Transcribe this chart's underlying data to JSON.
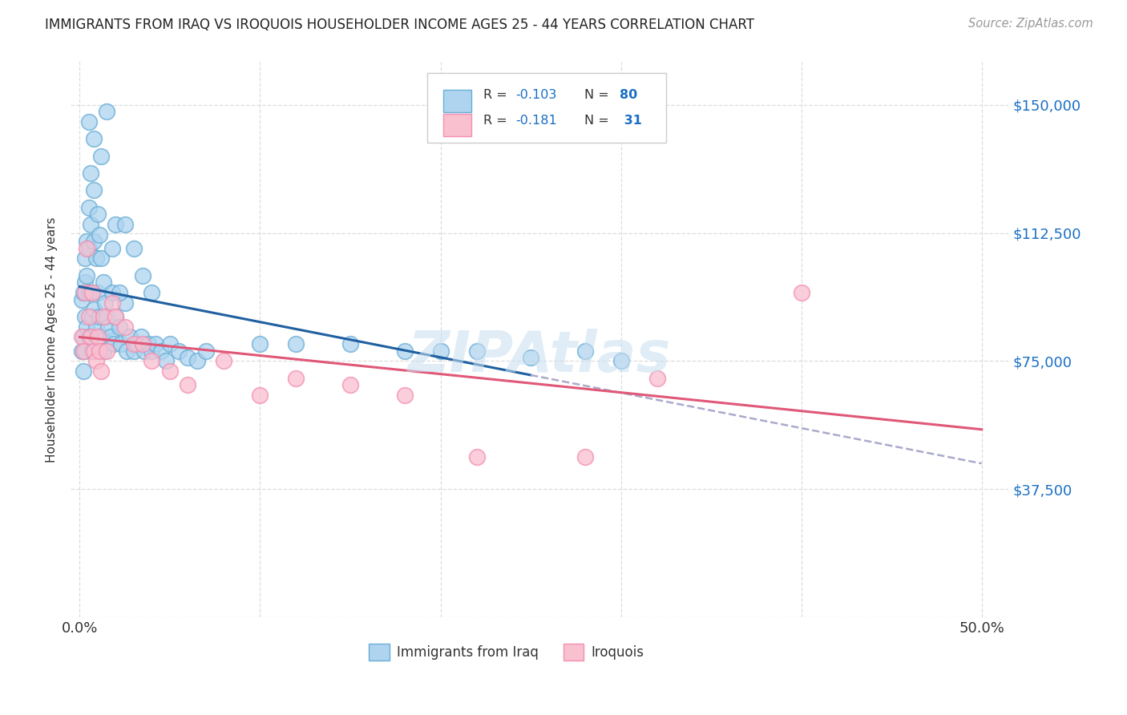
{
  "title": "IMMIGRANTS FROM IRAQ VS IROQUOIS HOUSEHOLDER INCOME AGES 25 - 44 YEARS CORRELATION CHART",
  "source": "Source: ZipAtlas.com",
  "ylabel": "Householder Income Ages 25 - 44 years",
  "xlim": [
    0.0,
    0.5
  ],
  "ylim": [
    0,
    162500
  ],
  "xticks": [
    0.0,
    0.1,
    0.2,
    0.3,
    0.4,
    0.5
  ],
  "xtick_labels": [
    "0.0%",
    "",
    "",
    "",
    "",
    "50.0%"
  ],
  "ytick_vals": [
    0,
    37500,
    75000,
    112500,
    150000
  ],
  "ytick_labels_right": [
    "",
    "$37,500",
    "$75,000",
    "$112,500",
    "$150,000"
  ],
  "iraq_color_face": "#aed4f0",
  "iraq_color_edge": "#6aaed6",
  "iroquois_color_face": "#f9c0d0",
  "iroquois_color_edge": "#f48fb1",
  "iraq_line_color": "#2060a0",
  "iroquois_line_color": "#e05878",
  "dashed_line_color": "#aaaacc",
  "watermark_text": "ZIPAtlas",
  "watermark_color": "#c8dff0",
  "legend_R_iraq": "-0.103",
  "legend_N_iraq": "80",
  "legend_R_iroquois": "-0.181",
  "legend_N_iroquois": "31",
  "iraq_x": [
    0.001,
    0.001,
    0.002,
    0.002,
    0.002,
    0.003,
    0.003,
    0.003,
    0.003,
    0.004,
    0.004,
    0.004,
    0.005,
    0.005,
    0.005,
    0.005,
    0.006,
    0.006,
    0.006,
    0.007,
    0.007,
    0.008,
    0.008,
    0.008,
    0.009,
    0.009,
    0.01,
    0.01,
    0.011,
    0.011,
    0.012,
    0.012,
    0.013,
    0.013,
    0.014,
    0.015,
    0.016,
    0.017,
    0.018,
    0.019,
    0.02,
    0.022,
    0.023,
    0.025,
    0.026,
    0.028,
    0.03,
    0.032,
    0.034,
    0.036,
    0.038,
    0.04,
    0.042,
    0.045,
    0.048,
    0.05,
    0.055,
    0.06,
    0.065,
    0.07,
    0.015,
    0.02,
    0.025,
    0.03,
    0.035,
    0.04,
    0.1,
    0.12,
    0.15,
    0.18,
    0.2,
    0.22,
    0.25,
    0.28,
    0.3,
    0.005,
    0.008,
    0.012,
    0.018,
    0.022
  ],
  "iraq_y": [
    93000,
    78000,
    95000,
    82000,
    72000,
    105000,
    98000,
    88000,
    78000,
    110000,
    100000,
    85000,
    120000,
    108000,
    95000,
    82000,
    130000,
    115000,
    95000,
    88000,
    78000,
    125000,
    110000,
    90000,
    105000,
    85000,
    118000,
    95000,
    112000,
    88000,
    105000,
    82000,
    98000,
    78000,
    92000,
    88000,
    85000,
    82000,
    95000,
    80000,
    88000,
    85000,
    80000,
    92000,
    78000,
    82000,
    78000,
    80000,
    82000,
    78000,
    80000,
    78000,
    80000,
    78000,
    75000,
    80000,
    78000,
    76000,
    75000,
    78000,
    148000,
    115000,
    115000,
    108000,
    100000,
    95000,
    80000,
    80000,
    80000,
    78000,
    78000,
    78000,
    76000,
    78000,
    75000,
    145000,
    140000,
    135000,
    108000,
    95000
  ],
  "iroquois_x": [
    0.001,
    0.002,
    0.003,
    0.004,
    0.005,
    0.006,
    0.007,
    0.008,
    0.009,
    0.01,
    0.011,
    0.012,
    0.013,
    0.015,
    0.018,
    0.02,
    0.025,
    0.03,
    0.035,
    0.04,
    0.05,
    0.06,
    0.08,
    0.1,
    0.12,
    0.15,
    0.18,
    0.22,
    0.28,
    0.32,
    0.4
  ],
  "iroquois_y": [
    82000,
    78000,
    95000,
    108000,
    88000,
    82000,
    95000,
    78000,
    75000,
    82000,
    78000,
    72000,
    88000,
    78000,
    92000,
    88000,
    85000,
    80000,
    80000,
    75000,
    72000,
    68000,
    75000,
    65000,
    70000,
    68000,
    65000,
    47000,
    47000,
    70000,
    95000
  ]
}
